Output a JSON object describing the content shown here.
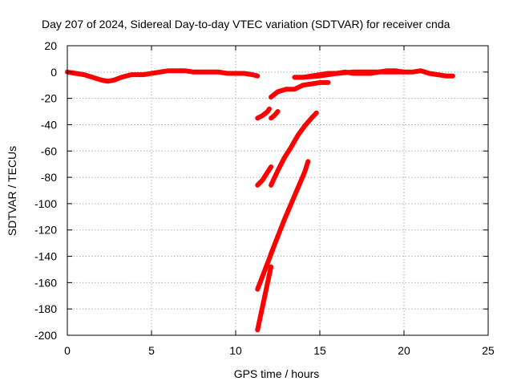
{
  "chart_data": {
    "type": "scatter",
    "title": "Day 207 of 2024, Sidereal Day-to-day VTEC variation (SDTVAR) for receiver cnda",
    "xlabel": "GPS time / hours",
    "ylabel": "SDTVAR / TECUs",
    "xlim": [
      0,
      25
    ],
    "ylim": [
      -200,
      20
    ],
    "x_ticks": [
      0,
      5,
      10,
      15,
      20,
      25
    ],
    "y_ticks": [
      20,
      0,
      -20,
      -40,
      -60,
      -80,
      -100,
      -120,
      -140,
      -160,
      -180,
      -200
    ],
    "grid": true,
    "legend": "none",
    "series_color": "#ff0000",
    "segments": [
      [
        [
          0,
          0
        ],
        [
          0.5,
          -1
        ],
        [
          1,
          -2
        ],
        [
          1.5,
          -4
        ],
        [
          2,
          -6
        ],
        [
          2.4,
          -7
        ],
        [
          2.8,
          -6
        ],
        [
          3.2,
          -4
        ],
        [
          3.8,
          -2
        ],
        [
          4.5,
          -2
        ],
        [
          5,
          -1
        ],
        [
          5.5,
          0
        ],
        [
          6,
          1
        ],
        [
          6.5,
          1
        ],
        [
          7,
          1
        ],
        [
          7.5,
          0
        ],
        [
          8,
          0
        ],
        [
          8.5,
          0
        ],
        [
          9,
          0
        ],
        [
          9.5,
          -1
        ],
        [
          10,
          -1
        ],
        [
          10.5,
          -1
        ],
        [
          11,
          -2
        ],
        [
          11.3,
          -3
        ]
      ],
      [
        [
          13.5,
          -4
        ],
        [
          14,
          -4
        ],
        [
          14.5,
          -3
        ],
        [
          15,
          -2
        ],
        [
          15.5,
          -1
        ],
        [
          16,
          -1
        ],
        [
          16.5,
          0
        ],
        [
          17,
          -1
        ],
        [
          17.5,
          -1
        ],
        [
          18,
          -1
        ],
        [
          18.5,
          0
        ],
        [
          19,
          1
        ],
        [
          19.5,
          1
        ],
        [
          20,
          0
        ],
        [
          20.5,
          0
        ],
        [
          21,
          1
        ],
        [
          21.5,
          -1
        ],
        [
          22,
          -2
        ],
        [
          22.5,
          -3
        ],
        [
          22.9,
          -3
        ]
      ],
      [
        [
          13.5,
          -4
        ],
        [
          14,
          -4
        ],
        [
          15,
          -3
        ],
        [
          16,
          -1
        ],
        [
          17,
          0
        ],
        [
          18,
          0
        ],
        [
          19,
          0
        ],
        [
          20,
          0
        ]
      ],
      [
        [
          12.1,
          -19
        ],
        [
          12.5,
          -15
        ],
        [
          13,
          -13
        ],
        [
          13.5,
          -13
        ],
        [
          14,
          -10
        ],
        [
          14.5,
          -9
        ],
        [
          15,
          -8
        ],
        [
          15.5,
          -8
        ]
      ],
      [
        [
          11.3,
          -35
        ],
        [
          11.6,
          -33
        ],
        [
          11.9,
          -30
        ],
        [
          12,
          -28
        ]
      ],
      [
        [
          12.1,
          -35
        ],
        [
          12.3,
          -33
        ],
        [
          12.5,
          -30
        ]
      ],
      [
        [
          11.3,
          -86
        ],
        [
          11.6,
          -82
        ],
        [
          11.9,
          -76
        ],
        [
          12.1,
          -72
        ]
      ],
      [
        [
          12.1,
          -86
        ],
        [
          12.5,
          -75
        ],
        [
          12.9,
          -65
        ],
        [
          13.3,
          -57
        ],
        [
          13.7,
          -48
        ],
        [
          14.1,
          -41
        ],
        [
          14.5,
          -35
        ],
        [
          14.8,
          -31
        ]
      ],
      [
        [
          11.3,
          -165
        ],
        [
          11.6,
          -155
        ],
        [
          11.9,
          -145
        ],
        [
          12.2,
          -135
        ]
      ],
      [
        [
          11.3,
          -196
        ],
        [
          11.6,
          -178
        ],
        [
          11.9,
          -160
        ],
        [
          12.1,
          -148
        ]
      ],
      [
        [
          12.1,
          -138
        ],
        [
          12.5,
          -125
        ],
        [
          12.9,
          -112
        ],
        [
          13.3,
          -100
        ],
        [
          13.7,
          -88
        ],
        [
          14.1,
          -76
        ],
        [
          14.3,
          -68
        ]
      ]
    ]
  }
}
